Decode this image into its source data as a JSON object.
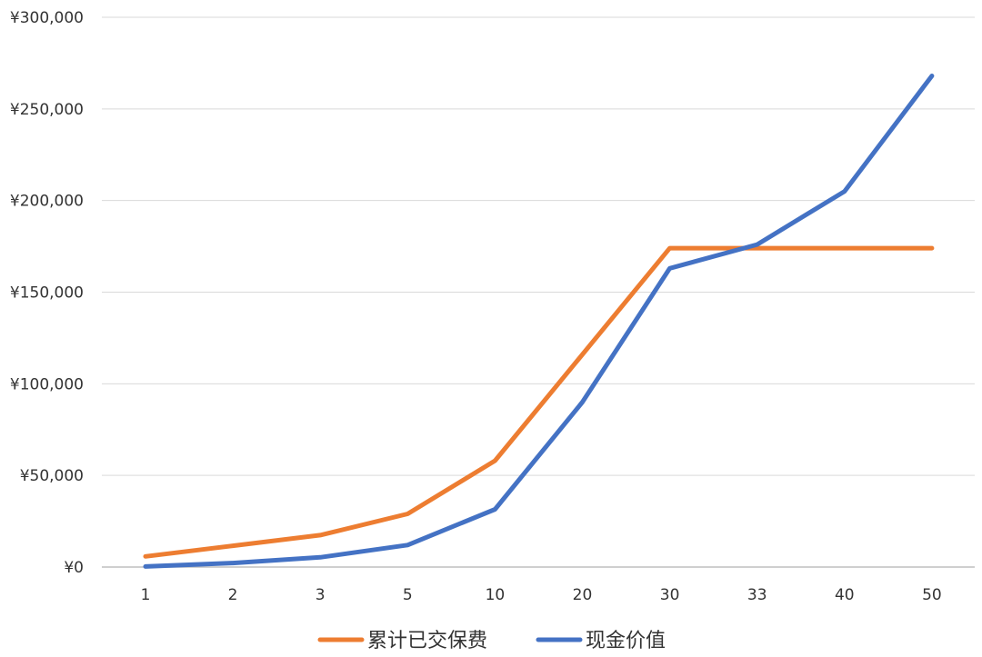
{
  "chart_data": {
    "type": "line",
    "categories": [
      "1",
      "2",
      "3",
      "5",
      "10",
      "20",
      "30",
      "33",
      "40",
      "50"
    ],
    "ylim": [
      0,
      300000
    ],
    "y_ticks": [
      0,
      50000,
      100000,
      150000,
      200000,
      250000,
      300000
    ],
    "y_tick_labels": [
      "¥0",
      "¥50,000",
      "¥100,000",
      "¥150,000",
      "¥200,000",
      "¥250,000",
      "¥300,000"
    ],
    "grid": true,
    "legend_position": "bottom",
    "series": [
      {
        "name": "累计已交保费",
        "color": "#ED7D31",
        "values": [
          5800,
          11600,
          17400,
          29000,
          58000,
          116000,
          174000,
          174000,
          174000,
          174000
        ]
      },
      {
        "name": "现金价值",
        "color": "#4472C4",
        "values": [
          300,
          2200,
          5300,
          12000,
          31500,
          90000,
          163000,
          176000,
          205000,
          268000
        ]
      }
    ]
  }
}
